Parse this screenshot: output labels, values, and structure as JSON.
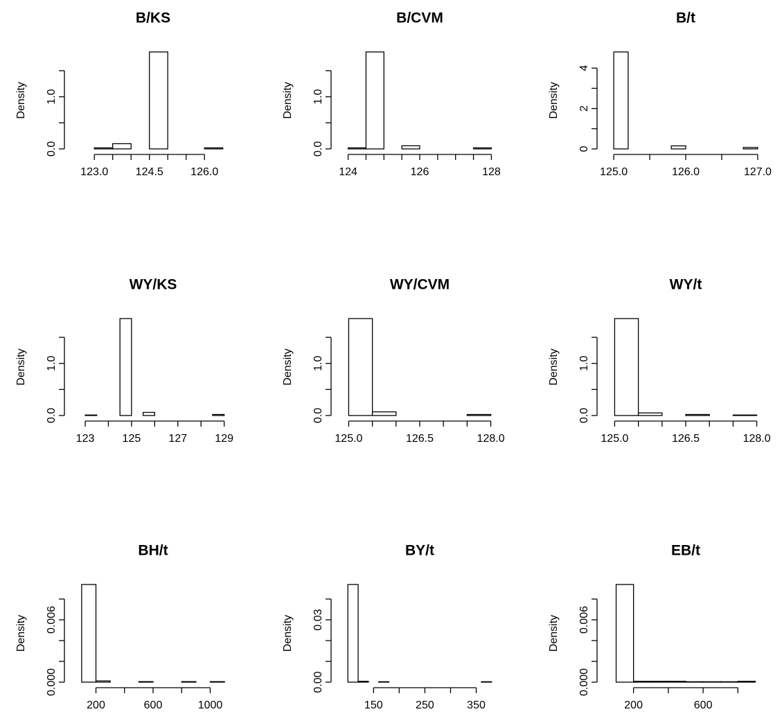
{
  "chart_data": [
    {
      "type": "bar",
      "title": "B/KS",
      "ylabel": "Density",
      "xlim": [
        122.6,
        126.6
      ],
      "ylim": [
        0,
        1.86
      ],
      "yticks": [
        0,
        0.5,
        1.0,
        1.5
      ],
      "yticklabels": [
        "0.0",
        "",
        "1.0",
        ""
      ],
      "xticks": [
        123.0,
        123.5,
        124.0,
        124.5,
        125.0,
        125.5,
        126.0
      ],
      "xticklabels": [
        "123.0",
        "",
        "",
        "124.5",
        "",
        "",
        "126.0"
      ],
      "bins": [
        {
          "x0": 123.0,
          "x1": 123.5,
          "density": 0.02
        },
        {
          "x0": 123.5,
          "x1": 124.0,
          "density": 0.1
        },
        {
          "x0": 124.0,
          "x1": 124.5,
          "density": 0.0
        },
        {
          "x0": 124.5,
          "x1": 125.0,
          "density": 1.86
        },
        {
          "x0": 125.0,
          "x1": 125.5,
          "density": 0.0
        },
        {
          "x0": 125.5,
          "x1": 126.0,
          "density": 0.0
        },
        {
          "x0": 126.0,
          "x1": 126.5,
          "density": 0.02
        }
      ]
    },
    {
      "type": "bar",
      "title": "B/CVM",
      "ylabel": "Density",
      "xlim": [
        123.95,
        128.05
      ],
      "ylim": [
        0,
        1.86
      ],
      "yticks": [
        0,
        0.5,
        1.0,
        1.5
      ],
      "yticklabels": [
        "0.0",
        "",
        "1.0",
        ""
      ],
      "xticks": [
        124,
        124.5,
        125,
        125.5,
        126,
        126.5,
        127,
        127.5,
        128
      ],
      "xticklabels": [
        "124",
        "",
        "",
        "",
        "126",
        "",
        "",
        "",
        "128"
      ],
      "bins": [
        {
          "x0": 124.0,
          "x1": 124.5,
          "density": 0.02
        },
        {
          "x0": 124.5,
          "x1": 125.0,
          "density": 1.86
        },
        {
          "x0": 125.0,
          "x1": 125.5,
          "density": 0.0
        },
        {
          "x0": 125.5,
          "x1": 126.0,
          "density": 0.06
        },
        {
          "x0": 126.0,
          "x1": 126.5,
          "density": 0.0
        },
        {
          "x0": 126.5,
          "x1": 127.0,
          "density": 0.0
        },
        {
          "x0": 127.0,
          "x1": 127.5,
          "density": 0.0
        },
        {
          "x0": 127.5,
          "x1": 128.0,
          "density": 0.02
        }
      ]
    },
    {
      "type": "bar",
      "title": "B/t",
      "ylabel": "Density",
      "xlim": [
        124.98,
        127.02
      ],
      "ylim": [
        0,
        4.8
      ],
      "yticks": [
        0,
        1,
        2,
        3,
        4
      ],
      "yticklabels": [
        "0",
        "",
        "2",
        "",
        "4"
      ],
      "xticks": [
        125.0,
        125.5,
        126.0,
        126.5,
        127.0
      ],
      "xticklabels": [
        "125.0",
        "",
        "126.0",
        "",
        "127.0"
      ],
      "bins": [
        {
          "x0": 125.0,
          "x1": 125.2,
          "density": 4.8
        },
        {
          "x0": 125.2,
          "x1": 125.4,
          "density": 0.0
        },
        {
          "x0": 125.4,
          "x1": 125.6,
          "density": 0.0
        },
        {
          "x0": 125.6,
          "x1": 125.8,
          "density": 0.0
        },
        {
          "x0": 125.8,
          "x1": 126.0,
          "density": 0.15
        },
        {
          "x0": 126.0,
          "x1": 126.2,
          "density": 0.0
        },
        {
          "x0": 126.2,
          "x1": 126.4,
          "density": 0.0
        },
        {
          "x0": 126.4,
          "x1": 126.6,
          "density": 0.0
        },
        {
          "x0": 126.6,
          "x1": 126.8,
          "density": 0.0
        },
        {
          "x0": 126.8,
          "x1": 127.0,
          "density": 0.07
        }
      ]
    },
    {
      "type": "bar",
      "title": "WY/KS",
      "ylabel": "Density",
      "xlim": [
        122.76,
        129.1
      ],
      "ylim": [
        0,
        1.86
      ],
      "yticks": [
        0,
        0.5,
        1.0,
        1.5
      ],
      "yticklabels": [
        "0.0",
        "",
        "1.0",
        ""
      ],
      "xticks": [
        123,
        124,
        125,
        126,
        127,
        128,
        129
      ],
      "xticklabels": [
        "123",
        "",
        "125",
        "",
        "127",
        "",
        "129"
      ],
      "bins": [
        {
          "x0": 123.0,
          "x1": 123.5,
          "density": 0.01
        },
        {
          "x0": 123.5,
          "x1": 124.0,
          "density": 0.0
        },
        {
          "x0": 124.0,
          "x1": 124.5,
          "density": 0.0
        },
        {
          "x0": 124.5,
          "x1": 125.0,
          "density": 1.86
        },
        {
          "x0": 125.0,
          "x1": 125.5,
          "density": 0.0
        },
        {
          "x0": 125.5,
          "x1": 126.0,
          "density": 0.06
        },
        {
          "x0": 126.0,
          "x1": 126.5,
          "density": 0.0
        },
        {
          "x0": 126.5,
          "x1": 127.0,
          "density": 0.0
        },
        {
          "x0": 127.0,
          "x1": 127.5,
          "density": 0.0
        },
        {
          "x0": 127.5,
          "x1": 128.0,
          "density": 0.0
        },
        {
          "x0": 128.0,
          "x1": 128.5,
          "density": 0.0
        },
        {
          "x0": 128.5,
          "x1": 129.0,
          "density": 0.02
        }
      ]
    },
    {
      "type": "bar",
      "title": "WY/CVM",
      "ylabel": "Density",
      "xlim": [
        124.95,
        128.05
      ],
      "ylim": [
        0,
        1.86
      ],
      "yticks": [
        0,
        0.5,
        1.0,
        1.5
      ],
      "yticklabels": [
        "0.0",
        "",
        "1.0",
        ""
      ],
      "xticks": [
        125.0,
        125.5,
        126.0,
        126.5,
        127.0,
        127.5,
        128.0
      ],
      "xticklabels": [
        "125.0",
        "",
        "",
        "126.5",
        "",
        "",
        "128.0"
      ],
      "bins": [
        {
          "x0": 125.0,
          "x1": 125.5,
          "density": 1.86
        },
        {
          "x0": 125.5,
          "x1": 126.0,
          "density": 0.07
        },
        {
          "x0": 126.0,
          "x1": 126.5,
          "density": 0.0
        },
        {
          "x0": 126.5,
          "x1": 127.0,
          "density": 0.0
        },
        {
          "x0": 127.0,
          "x1": 127.5,
          "density": 0.0
        },
        {
          "x0": 127.5,
          "x1": 128.0,
          "density": 0.02
        }
      ]
    },
    {
      "type": "bar",
      "title": "WY/t",
      "ylabel": "Density",
      "xlim": [
        124.95,
        128.05
      ],
      "ylim": [
        0,
        1.86
      ],
      "yticks": [
        0,
        0.5,
        1.0,
        1.5
      ],
      "yticklabels": [
        "0.0",
        "",
        "1.0",
        ""
      ],
      "xticks": [
        125.0,
        125.5,
        126.0,
        126.5,
        127.0,
        127.5,
        128.0
      ],
      "xticklabels": [
        "125.0",
        "",
        "",
        "126.5",
        "",
        "",
        "128.0"
      ],
      "bins": [
        {
          "x0": 125.0,
          "x1": 125.5,
          "density": 1.86
        },
        {
          "x0": 125.5,
          "x1": 126.0,
          "density": 0.05
        },
        {
          "x0": 126.0,
          "x1": 126.5,
          "density": 0.0
        },
        {
          "x0": 126.5,
          "x1": 127.0,
          "density": 0.02
        },
        {
          "x0": 127.0,
          "x1": 127.5,
          "density": 0.0
        },
        {
          "x0": 127.5,
          "x1": 128.0,
          "density": 0.01
        }
      ]
    },
    {
      "type": "bar",
      "title": "BH/t",
      "ylabel": "Density",
      "xlim": [
        86,
        1114
      ],
      "ylim": [
        0,
        0.0094
      ],
      "yticks": [
        0,
        0.002,
        0.004,
        0.006,
        0.008
      ],
      "yticklabels": [
        "0.000",
        "",
        "",
        "0.006",
        ""
      ],
      "xticks": [
        200,
        400,
        600,
        800,
        1000
      ],
      "xticklabels": [
        "200",
        "",
        "600",
        "",
        "1000"
      ],
      "bins": [
        {
          "x0": 100,
          "x1": 200,
          "density": 0.0094
        },
        {
          "x0": 200,
          "x1": 300,
          "density": 0.00012
        },
        {
          "x0": 300,
          "x1": 400,
          "density": 0.0
        },
        {
          "x0": 400,
          "x1": 500,
          "density": 0.0
        },
        {
          "x0": 500,
          "x1": 600,
          "density": 5e-05
        },
        {
          "x0": 600,
          "x1": 700,
          "density": 0.0
        },
        {
          "x0": 700,
          "x1": 800,
          "density": 0.0
        },
        {
          "x0": 800,
          "x1": 900,
          "density": 5e-05
        },
        {
          "x0": 900,
          "x1": 1000,
          "density": 0.0
        },
        {
          "x0": 1000,
          "x1": 1100,
          "density": 5e-05
        }
      ]
    },
    {
      "type": "bar",
      "title": "BY/t",
      "ylabel": "Density",
      "xlim": [
        97,
        383
      ],
      "ylim": [
        0,
        0.047
      ],
      "yticks": [
        0,
        0.01,
        0.02,
        0.03,
        0.04
      ],
      "yticklabels": [
        "0.00",
        "",
        "",
        "0.03",
        ""
      ],
      "xticks": [
        150,
        200,
        250,
        300,
        350
      ],
      "xticklabels": [
        "150",
        "",
        "250",
        "",
        "350"
      ],
      "bins": [
        {
          "x0": 100,
          "x1": 120,
          "density": 0.047
        },
        {
          "x0": 120,
          "x1": 140,
          "density": 0.0004
        },
        {
          "x0": 140,
          "x1": 160,
          "density": 0.0
        },
        {
          "x0": 160,
          "x1": 180,
          "density": 0.0002
        },
        {
          "x0": 180,
          "x1": 200,
          "density": 0.0
        },
        {
          "x0": 200,
          "x1": 220,
          "density": 0.0
        },
        {
          "x0": 220,
          "x1": 240,
          "density": 0.0
        },
        {
          "x0": 240,
          "x1": 260,
          "density": 0.0
        },
        {
          "x0": 260,
          "x1": 280,
          "density": 0.0
        },
        {
          "x0": 280,
          "x1": 300,
          "density": 0.0
        },
        {
          "x0": 300,
          "x1": 320,
          "density": 0.0
        },
        {
          "x0": 320,
          "x1": 340,
          "density": 0.0
        },
        {
          "x0": 340,
          "x1": 360,
          "density": 0.0
        },
        {
          "x0": 360,
          "x1": 380,
          "density": 0.0002
        }
      ]
    },
    {
      "type": "bar",
      "title": "EB/t",
      "ylabel": "Density",
      "xlim": [
        78,
        922
      ],
      "ylim": [
        0,
        0.0094
      ],
      "yticks": [
        0,
        0.002,
        0.004,
        0.006,
        0.008
      ],
      "yticklabels": [
        "0.000",
        "",
        "",
        "0.006",
        ""
      ],
      "xticks": [
        200,
        400,
        600,
        800
      ],
      "xticklabels": [
        "200",
        "",
        "600",
        ""
      ],
      "bins": [
        {
          "x0": 100,
          "x1": 200,
          "density": 0.0094
        },
        {
          "x0": 200,
          "x1": 300,
          "density": 8e-05
        },
        {
          "x0": 300,
          "x1": 400,
          "density": 8e-05
        },
        {
          "x0": 400,
          "x1": 500,
          "density": 8e-05
        },
        {
          "x0": 500,
          "x1": 600,
          "density": 4e-05
        },
        {
          "x0": 600,
          "x1": 700,
          "density": 4e-05
        },
        {
          "x0": 700,
          "x1": 800,
          "density": 4e-05
        },
        {
          "x0": 800,
          "x1": 900,
          "density": 8e-05
        }
      ]
    }
  ]
}
